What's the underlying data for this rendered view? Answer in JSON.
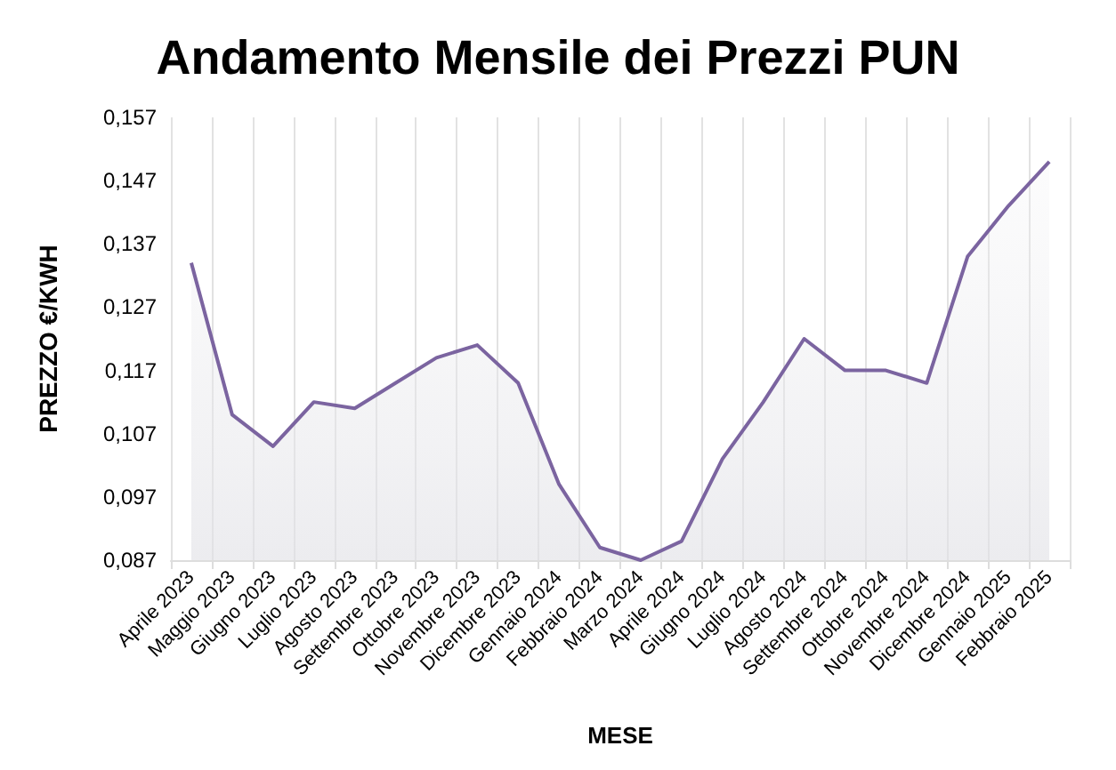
{
  "chart_data": {
    "type": "area",
    "title": "Andamento Mensile dei Prezzi PUN",
    "xlabel": "MESE",
    "ylabel": "PREZZO €/KWH",
    "categories": [
      "Aprile 2023",
      "Maggio 2023",
      "Giugno 2023",
      "Luglio 2023",
      "Agosto 2023",
      "Settembre 2023",
      "Ottobre 2023",
      "Novembre 2023",
      "Dicembre 2023",
      "Gennaio 2024",
      "Febbraio 2024",
      "Marzo 2024",
      "Aprile 2024",
      "Giugno 2024",
      "Luglio 2024",
      "Agosto 2024",
      "Settembre 2024",
      "Ottobre 2024",
      "Novembre 2024",
      "Dicembre 2024",
      "Gennaio 2025",
      "Febbraio 2025"
    ],
    "series": [
      {
        "color": "#7b64a0",
        "values": [
          0.134,
          0.11,
          0.105,
          0.112,
          0.111,
          0.115,
          0.119,
          0.121,
          0.115,
          0.099,
          0.089,
          0.087,
          0.09,
          0.103,
          0.112,
          0.122,
          0.117,
          0.117,
          0.115,
          0.135,
          0.143,
          0.15
        ]
      }
    ],
    "ylim": [
      0.087,
      0.157
    ],
    "yticks": [
      {
        "value": 0.087,
        "label": "0,087"
      },
      {
        "value": 0.097,
        "label": "0,097"
      },
      {
        "value": 0.107,
        "label": "0,107"
      },
      {
        "value": 0.117,
        "label": "0,117"
      },
      {
        "value": 0.127,
        "label": "0,127"
      },
      {
        "value": 0.137,
        "label": "0,137"
      },
      {
        "value": 0.147,
        "label": "0,147"
      },
      {
        "value": 0.157,
        "label": "0,157"
      }
    ],
    "grid": "x",
    "marker": "none",
    "line_style": "solid"
  }
}
